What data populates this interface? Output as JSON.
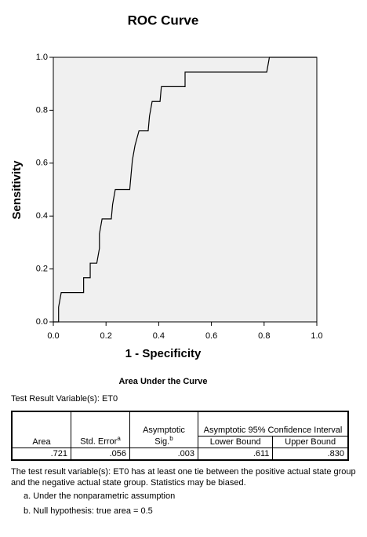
{
  "chart_data": {
    "type": "line",
    "title": "ROC Curve",
    "xlabel": "1 - Specificity",
    "ylabel": "Sensitivity",
    "x": [
      0,
      0.02,
      0.02,
      0.03,
      0.115,
      0.115,
      0.14,
      0.14,
      0.165,
      0.175,
      0.175,
      0.185,
      0.22,
      0.225,
      0.235,
      0.29,
      0.295,
      0.3,
      0.31,
      0.325,
      0.36,
      0.365,
      0.375,
      0.405,
      0.41,
      0.5,
      0.5,
      0.81,
      0.82,
      1
    ],
    "values": [
      0,
      0,
      0.056,
      0.111,
      0.111,
      0.167,
      0.167,
      0.222,
      0.222,
      0.278,
      0.333,
      0.389,
      0.389,
      0.444,
      0.5,
      0.5,
      0.556,
      0.611,
      0.667,
      0.722,
      0.722,
      0.778,
      0.833,
      0.833,
      0.889,
      0.889,
      0.944,
      0.944,
      1,
      1
    ],
    "color": "#000000",
    "background": "#f0f0f0",
    "xlim": [
      0,
      1
    ],
    "ylim": [
      0,
      1
    ],
    "xticks": [
      {
        "value": 0,
        "label": "0.0"
      },
      0.2,
      0.4,
      0.6,
      0.8,
      {
        "value": 1,
        "label": "1.0"
      }
    ],
    "yticks": [
      {
        "value": 0,
        "label": "0.0"
      },
      0.2,
      0.4,
      0.6,
      0.8,
      {
        "value": 1,
        "label": "1.0"
      }
    ]
  },
  "table": {
    "title": "Area Under the Curve",
    "variable": "Test Result Variable(s): ET0",
    "headers": {
      "area": "Area",
      "std_error": "Std. Error",
      "std_error_note": "a",
      "sig": "Asymptotic Sig.",
      "sig_note": "b",
      "ci": "Asymptotic 95% Confidence Interval",
      "lower": "Lower Bound",
      "upper": "Upper Bound"
    },
    "rows": [
      [
        ".721",
        ".056",
        ".003",
        ".611",
        ".830"
      ]
    ],
    "note": "The test result variable(s): ET0 has at least one tie between the positive actual state group and the negative actual state group. Statistics may be biased.",
    "footnotes": [
      "a. Under the nonparametric assumption",
      "b. Null hypothesis: true area = 0.5"
    ]
  }
}
